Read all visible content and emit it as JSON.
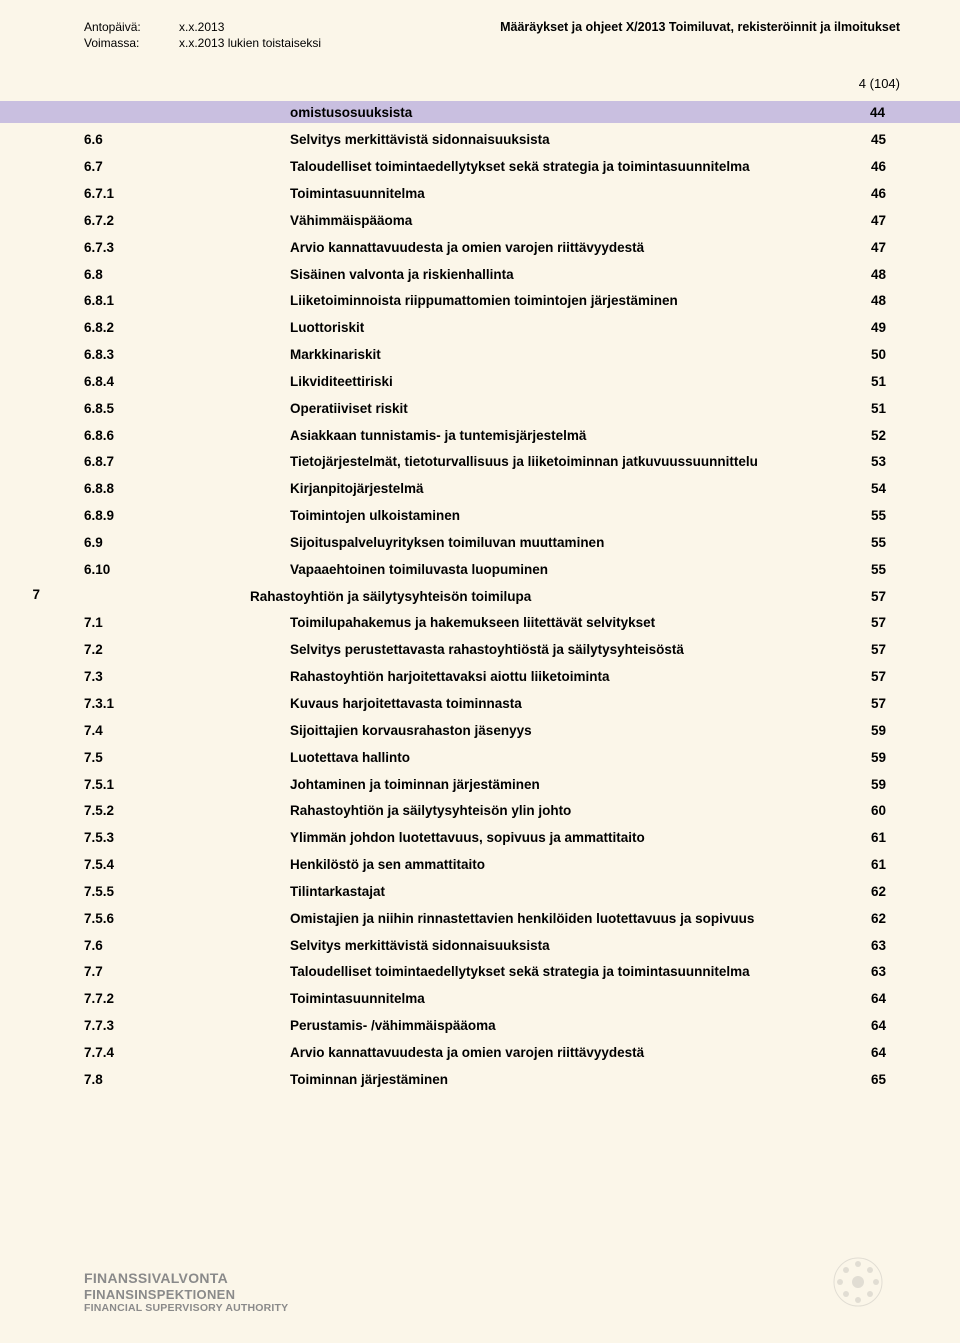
{
  "header": {
    "issued_label": "Antopäivä:",
    "issued_value": "x.x.2013",
    "valid_label": "Voimassa:",
    "valid_value": "x.x.2013 lukien toistaiseksi",
    "doc_title": "Määräykset ja ohjeet X/2013 Toimiluvat, rekisteröinnit ja ilmoitukset",
    "page_indicator": "4 (104)"
  },
  "stripe": {
    "title": "omistusosuuksista",
    "page": "44"
  },
  "toc": [
    {
      "num": "6.6",
      "title": "Selvitys merkittävistä sidonnaisuuksista",
      "page": "45"
    },
    {
      "num": "6.7",
      "title": "Taloudelliset toimintaedellytykset sekä strategia ja toimintasuunnitelma",
      "page": "46"
    },
    {
      "num": "6.7.1",
      "title": "Toimintasuunnitelma",
      "page": "46"
    },
    {
      "num": "6.7.2",
      "title": "Vähimmäispääoma",
      "page": "47"
    },
    {
      "num": "6.7.3",
      "title": "Arvio kannattavuudesta ja omien varojen riittävyydestä",
      "page": "47"
    },
    {
      "num": "6.8",
      "title": "Sisäinen valvonta ja riskienhallinta",
      "page": "48"
    },
    {
      "num": "6.8.1",
      "title": "Liiketoiminnoista riippumattomien toimintojen järjestäminen",
      "page": "48"
    },
    {
      "num": "6.8.2",
      "title": "Luottoriskit",
      "page": "49"
    },
    {
      "num": "6.8.3",
      "title": "Markkinariskit",
      "page": "50"
    },
    {
      "num": "6.8.4",
      "title": "Likviditeettiriski",
      "page": "51"
    },
    {
      "num": "6.8.5",
      "title": "Operatiiviset riskit",
      "page": "51"
    },
    {
      "num": "6.8.6",
      "title": "Asiakkaan tunnistamis- ja tuntemisjärjestelmä",
      "page": "52"
    },
    {
      "num": "6.8.7",
      "title": "Tietojärjestelmät, tietoturvallisuus ja liiketoiminnan jatkuvuussuunnittelu",
      "page": "53"
    },
    {
      "num": "6.8.8",
      "title": "Kirjanpitojärjestelmä",
      "page": "54"
    },
    {
      "num": "6.8.9",
      "title": "Toimintojen ulkoistaminen",
      "page": "55"
    },
    {
      "num": "6.9",
      "title": "Sijoituspalveluyrityksen toimiluvan muuttaminen",
      "page": "55"
    },
    {
      "num": "6.10",
      "title": "Vapaaehtoinen toimiluvasta luopuminen",
      "page": "55"
    }
  ],
  "chapter": {
    "num": "7",
    "title": "Rahastoyhtiön ja säilytysyhteisön toimilupa",
    "page": "57"
  },
  "toc2": [
    {
      "num": "7.1",
      "title": "Toimilupahakemus ja hakemukseen liitettävät selvitykset",
      "page": "57"
    },
    {
      "num": "7.2",
      "title": "Selvitys perustettavasta rahastoyhtiöstä ja säilytysyhteisöstä",
      "page": "57"
    },
    {
      "num": "7.3",
      "title": "Rahastoyhtiön harjoitettavaksi aiottu liiketoiminta",
      "page": "57"
    },
    {
      "num": "7.3.1",
      "title": "Kuvaus harjoitettavasta toiminnasta",
      "page": "57"
    },
    {
      "num": "7.4",
      "title": "Sijoittajien korvausrahaston jäsenyys",
      "page": "59"
    },
    {
      "num": "7.5",
      "title": "Luotettava hallinto",
      "page": "59"
    },
    {
      "num": "7.5.1",
      "title": "Johtaminen ja toiminnan järjestäminen",
      "page": "59"
    },
    {
      "num": "7.5.2",
      "title": "Rahastoyhtiön ja säilytysyhteisön ylin johto",
      "page": "60"
    },
    {
      "num": "7.5.3",
      "title": "Ylimmän johdon luotettavuus, sopivuus ja ammattitaito",
      "page": "61"
    },
    {
      "num": "7.5.4",
      "title": "Henkilöstö ja sen ammattitaito",
      "page": "61"
    },
    {
      "num": "7.5.5",
      "title": "Tilintarkastajat",
      "page": "62"
    },
    {
      "num": "7.5.6",
      "title": "Omistajien ja niihin rinnastettavien henkilöiden luotettavuus ja sopivuus",
      "page": "62"
    },
    {
      "num": "7.6",
      "title": "Selvitys merkittävistä sidonnaisuuksista",
      "page": "63"
    },
    {
      "num": "7.7",
      "title": "Taloudelliset toimintaedellytykset sekä strategia ja toimintasuunnitelma",
      "page": "63"
    },
    {
      "num": "7.7.2",
      "title": "Toimintasuunnitelma",
      "page": "64"
    },
    {
      "num": "7.7.3",
      "title": "Perustamis- /vähimmäispääoma",
      "page": "64"
    },
    {
      "num": "7.7.4",
      "title": "Arvio kannattavuudesta ja omien varojen riittävyydestä",
      "page": "64"
    },
    {
      "num": "7.8",
      "title": "Toiminnan järjestäminen",
      "page": "65"
    }
  ],
  "footer": {
    "line1": "FINANSSIVALVONTA",
    "line2": "FINANSINSPEKTIONEN",
    "line3": "FINANCIAL SUPERVISORY AUTHORITY"
  }
}
